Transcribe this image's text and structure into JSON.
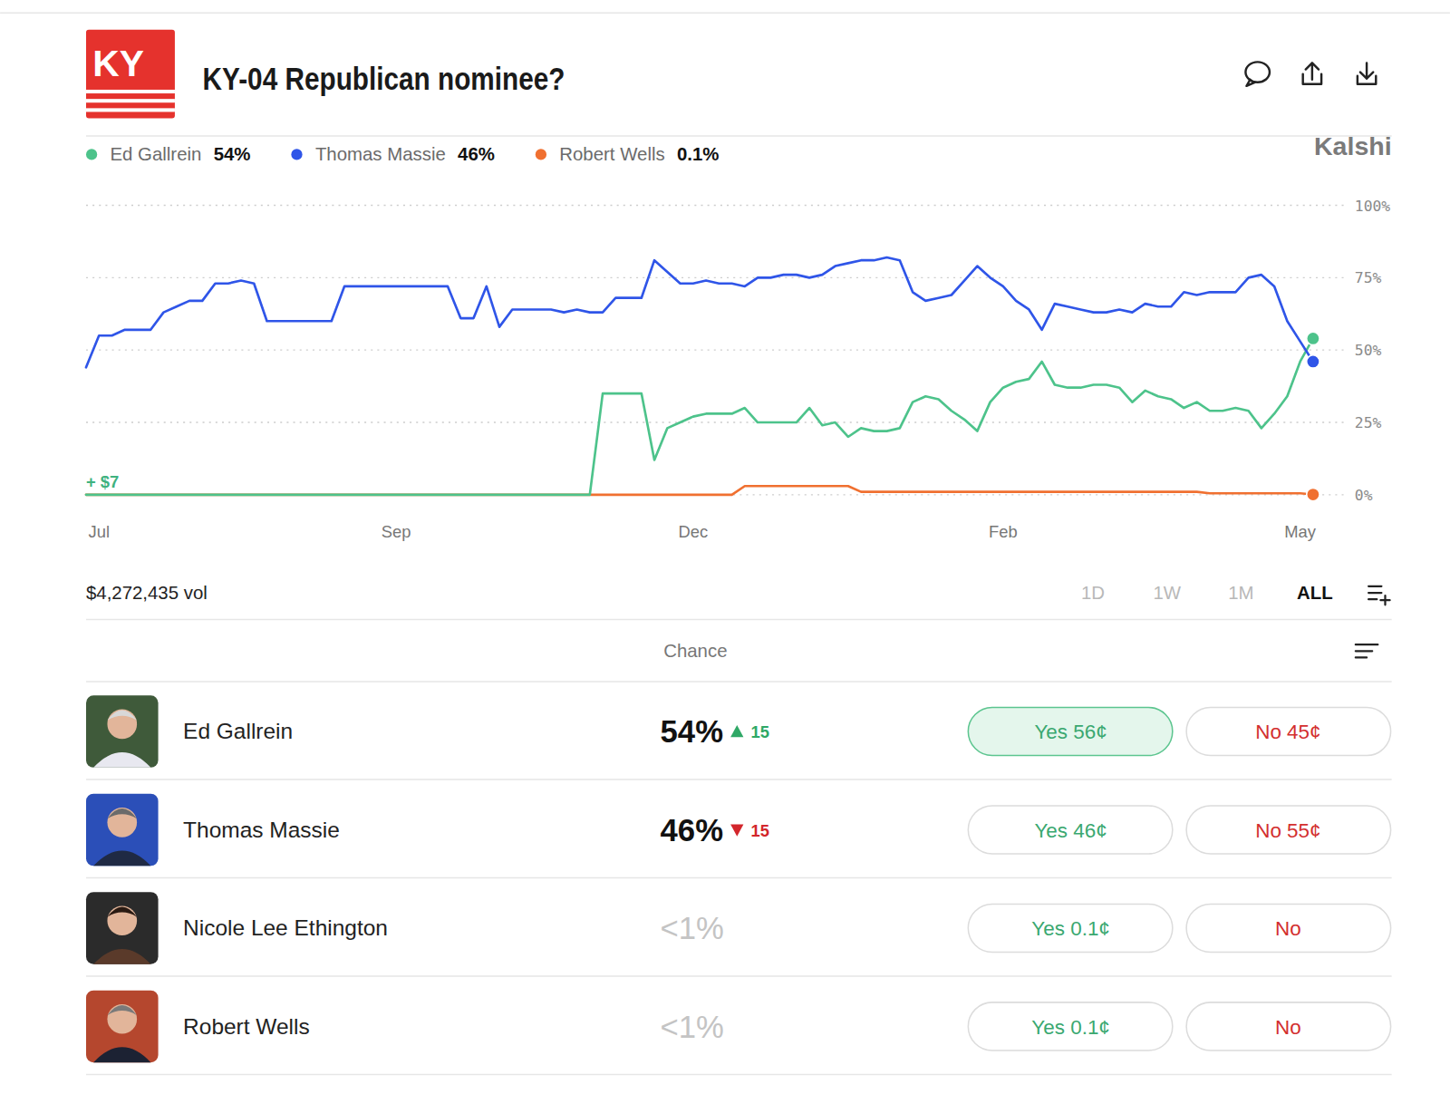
{
  "header": {
    "logo": "KY",
    "title": "KY-04 Republican nominee?",
    "brand": "Kalshi"
  },
  "chart_data": {
    "type": "line",
    "categories": [
      null,
      "Jul",
      null,
      null,
      null,
      null,
      null,
      null,
      null,
      null,
      null,
      null,
      null,
      null,
      null,
      null,
      null,
      null,
      null,
      null,
      null,
      null,
      null,
      null,
      "Sep",
      null,
      null,
      null,
      null,
      null,
      null,
      null,
      null,
      null,
      null,
      null,
      null,
      null,
      null,
      null,
      null,
      null,
      null,
      null,
      null,
      null,
      null,
      "Dec",
      null,
      null,
      null,
      null,
      null,
      null,
      null,
      null,
      null,
      null,
      null,
      null,
      null,
      null,
      null,
      null,
      null,
      null,
      null,
      null,
      null,
      null,
      null,
      "Feb",
      null,
      null,
      null,
      null,
      null,
      null,
      null,
      null,
      null,
      null,
      null,
      null,
      null,
      null,
      null,
      null,
      null,
      null,
      null,
      null,
      null,
      null,
      "May",
      null
    ],
    "series": [
      {
        "name": "Ed Gallrein",
        "color": "#4dc38b",
        "current": {
          "value": 54,
          "label": "54%"
        },
        "values": [
          0,
          0,
          0,
          0,
          0,
          0,
          0,
          0,
          0,
          0,
          0,
          0,
          0,
          0,
          0,
          0,
          0,
          0,
          0,
          0,
          0,
          0,
          0,
          0,
          0,
          0,
          0,
          0,
          0,
          0,
          0,
          0,
          0,
          0,
          0,
          0,
          0,
          0,
          0,
          0,
          35,
          35,
          35,
          35,
          12,
          23,
          25,
          27,
          28,
          28,
          28,
          30,
          25,
          25,
          25,
          25,
          30,
          24,
          25,
          20,
          23,
          22,
          22,
          23,
          32,
          34,
          33,
          29,
          26,
          22,
          32,
          37,
          39,
          40,
          46,
          38,
          37,
          37,
          38,
          38,
          37,
          32,
          36,
          34,
          33,
          30,
          32,
          29,
          29,
          30,
          29,
          23,
          28,
          34,
          46,
          54
        ]
      },
      {
        "name": "Thomas Massie",
        "color": "#2f55e8",
        "current": {
          "value": 46,
          "label": "46%"
        },
        "values": [
          44,
          55,
          55,
          57,
          57,
          57,
          63,
          65,
          67,
          67,
          73,
          73,
          74,
          73,
          60,
          60,
          60,
          60,
          60,
          60,
          72,
          72,
          72,
          72,
          72,
          72,
          72,
          72,
          72,
          61,
          61,
          72,
          58,
          64,
          64,
          64,
          64,
          63,
          64,
          63,
          63,
          68,
          68,
          68,
          81,
          77,
          73,
          73,
          74,
          73,
          73,
          72,
          75,
          75,
          76,
          76,
          75,
          76,
          79,
          80,
          81,
          81,
          82,
          81,
          70,
          67,
          68,
          69,
          74,
          79,
          75,
          72,
          67,
          64,
          57,
          66,
          65,
          64,
          63,
          63,
          64,
          63,
          66,
          65,
          65,
          70,
          69,
          70,
          70,
          70,
          75,
          76,
          72,
          60,
          53,
          46
        ]
      },
      {
        "name": "Robert Wells",
        "color": "#f07030",
        "current": {
          "value": 0.1,
          "label": "0.1%"
        },
        "values": [
          0,
          0,
          0,
          0,
          0,
          0,
          0,
          0,
          0,
          0,
          0,
          0,
          0,
          0,
          0,
          0,
          0,
          0,
          0,
          0,
          0,
          0,
          0,
          0,
          0,
          0,
          0,
          0,
          0,
          0,
          0,
          0,
          0,
          0,
          0,
          0,
          0,
          0,
          0,
          0,
          0,
          0,
          0,
          0,
          0,
          0,
          0,
          0,
          0,
          0,
          0,
          3,
          3,
          3,
          3,
          3,
          3,
          3,
          3,
          3,
          1,
          1,
          1,
          1,
          1,
          1,
          1,
          1,
          1,
          1,
          1,
          1,
          1,
          1,
          1,
          1,
          1,
          1,
          1,
          1,
          1,
          1,
          1,
          1,
          1,
          1,
          1,
          0.5,
          0.5,
          0.5,
          0.5,
          0.5,
          0.5,
          0.5,
          0.5,
          0.1
        ]
      }
    ],
    "ylim": [
      0,
      100
    ],
    "yticks": [
      {
        "value": 0,
        "label": "0%"
      },
      {
        "value": 25,
        "label": "25%"
      },
      {
        "value": 50,
        "label": "50%"
      },
      {
        "value": 75,
        "label": "75%"
      },
      {
        "value": 100,
        "label": "100%"
      }
    ],
    "grid": true,
    "legend": "top",
    "annotation": "+ $7"
  },
  "controls": {
    "volume": "$4,272,435 vol",
    "ranges": [
      "1D",
      "1W",
      "1M",
      "ALL"
    ],
    "active_range": "ALL"
  },
  "table": {
    "header": "Chance",
    "rows": [
      {
        "name": "Ed Gallrein",
        "chance": "54%",
        "change": "15",
        "direction": "up",
        "yes": "Yes 56¢",
        "no": "No 45¢",
        "selected": true
      },
      {
        "name": "Thomas Massie",
        "chance": "46%",
        "change": "15",
        "direction": "down",
        "yes": "Yes 46¢",
        "no": "No 55¢",
        "selected": false
      },
      {
        "name": "Nicole Lee Ethington",
        "chance": "<1%",
        "yes": "Yes 0.1¢",
        "no": "No",
        "selected": false
      },
      {
        "name": "Robert Wells",
        "chance": "<1%",
        "yes": "Yes 0.1¢",
        "no": "No",
        "selected": false
      }
    ]
  }
}
